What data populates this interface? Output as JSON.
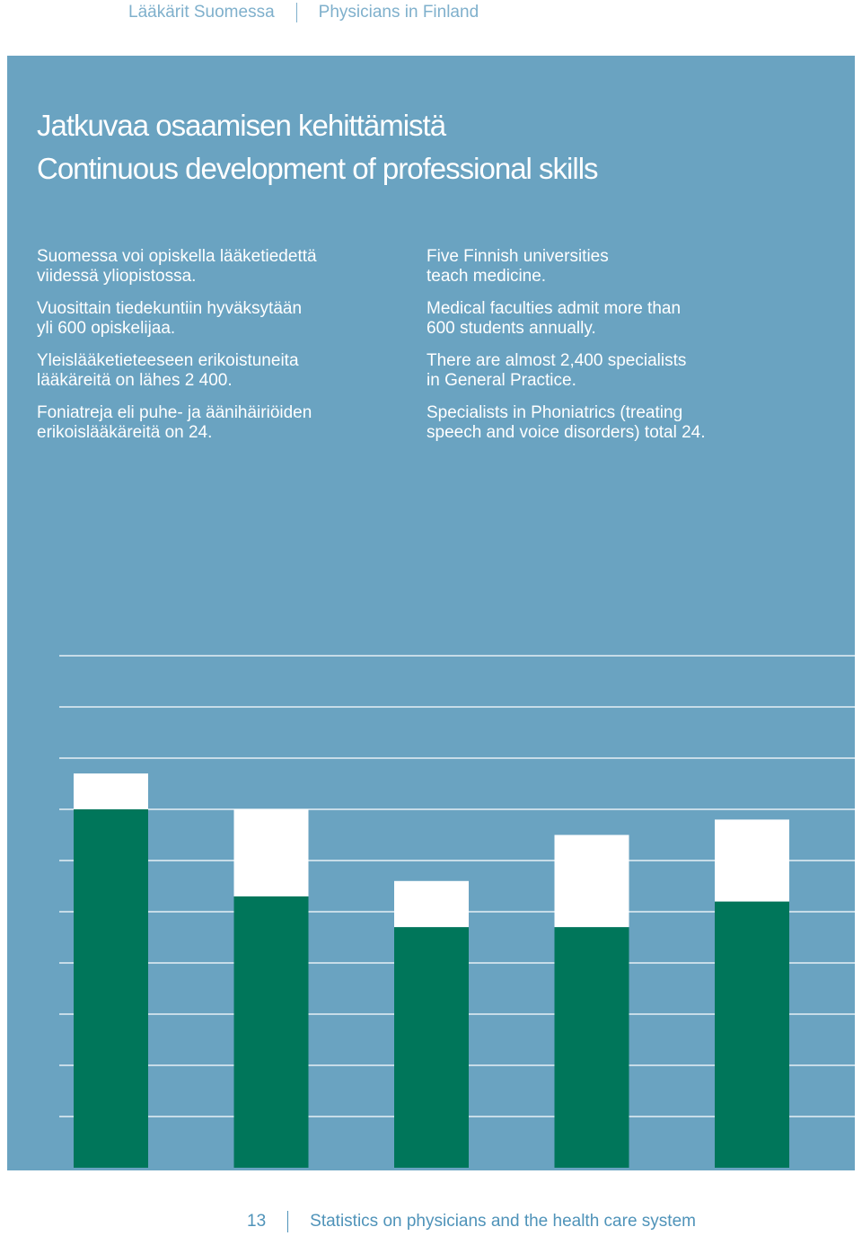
{
  "header": {
    "left": "Lääkärit Suomessa",
    "right": "Physicians in Finland"
  },
  "title": {
    "fi": "Jatkuvaa osaamisen kehittämistä",
    "en": "Continuous development of professional skills"
  },
  "finnish_paragraphs": [
    [
      "Suomessa voi opiskella lääketiedettä",
      "viidessä yliopistossa."
    ],
    [
      "Vuosittain tiedekuntiin hyväksytään",
      "yli 600 opiskelijaa."
    ],
    [
      "Yleislääketieteeseen erikoistuneita",
      "lääkäreitä on lähes 2 400."
    ],
    [
      "Foniatreja eli puhe- ja äänihäiriöiden",
      "erikoislääkäreitä on 24."
    ]
  ],
  "english_paragraphs": [
    [
      "Five Finnish universities",
      "teach medicine."
    ],
    [
      "Medical faculties admit more than",
      "600 students annually."
    ],
    [
      "There are almost 2,400 specialists",
      "in General Practice."
    ],
    [
      "Specialists in Phoniatrics (treating",
      "speech and voice disorders) total 24."
    ]
  ],
  "chart_data": {
    "type": "bar",
    "stacked": true,
    "ylim": [
      0,
      10
    ],
    "grid": true,
    "series": [
      {
        "color": "#00765a",
        "values": [
          7.0,
          5.3,
          4.7,
          4.7,
          5.2
        ]
      },
      {
        "color": "#ffffff",
        "values": [
          0.7,
          1.7,
          0.9,
          1.8,
          1.6
        ]
      }
    ],
    "colors": {
      "panel": "#6aa3c1",
      "grid": "#ffffff"
    }
  },
  "footer": {
    "page_number": "13",
    "text": "Statistics on physicians and the health care system"
  }
}
